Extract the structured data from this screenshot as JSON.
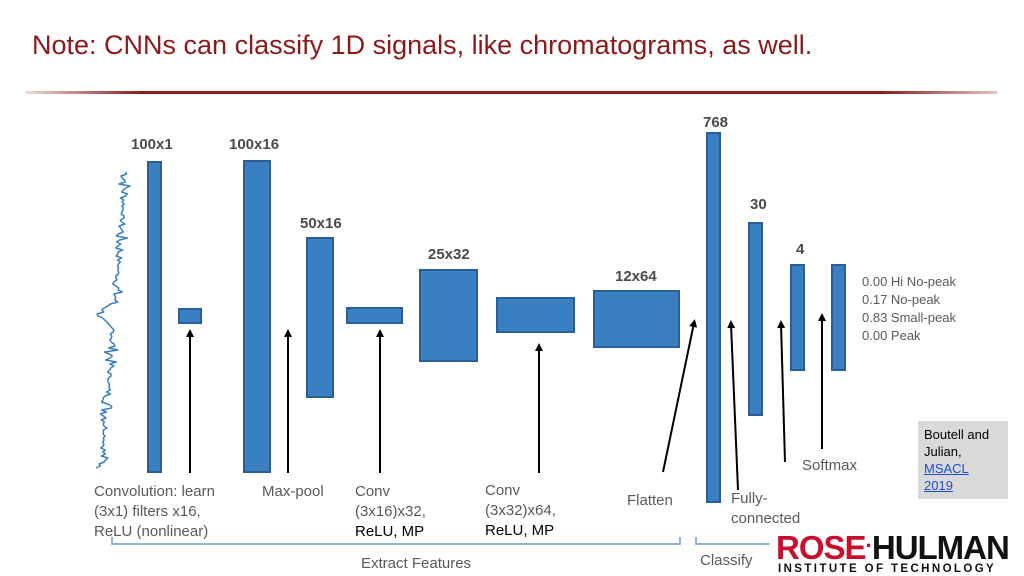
{
  "slide": {
    "title": "Note: CNNs can classify 1D signals, like chromatograms, as well."
  },
  "dimensions": {
    "input": "100x1",
    "conv1": "100x16",
    "pool": "50x16",
    "conv2": "25x32",
    "conv3": "12x64",
    "flatten": "768",
    "fc": "30",
    "out": "4"
  },
  "labels": {
    "conv1_line1": "Convolution: learn",
    "conv1_line2": "(3x1) filters x16,",
    "conv1_line3": "ReLU (nonlinear)",
    "pool": "Max-pool",
    "conv2_line1": "Conv",
    "conv2_line2": "(3x16)x32,",
    "conv2_line3": "ReLU, MP",
    "conv3_line1": "Conv",
    "conv3_line2": "(3x32)x64,",
    "conv3_line3": "ReLU, MP",
    "flatten": "Flatten",
    "fc_line1": "Fully-",
    "fc_line2": "connected",
    "softmax": "Softmax",
    "extract": "Extract Features",
    "classify": "Classify"
  },
  "outputs": [
    "0.00 Hi No-peak",
    "0.17 No-peak",
    "0.83 Small-peak",
    "0.00 Peak"
  ],
  "citation": {
    "line1": "Boutell and",
    "line2": "Julian,",
    "link1": "MSACL",
    "link2": "2019"
  },
  "logo": {
    "word1": "ROSE",
    "word2": "HULMAN",
    "subtitle": "INSTITUTE OF TECHNOLOGY"
  },
  "colors": {
    "title": "#8b1a1a",
    "block_fill": "#3a7fc1",
    "block_border": "#2a5f96",
    "signal": "#3a7fc1"
  }
}
